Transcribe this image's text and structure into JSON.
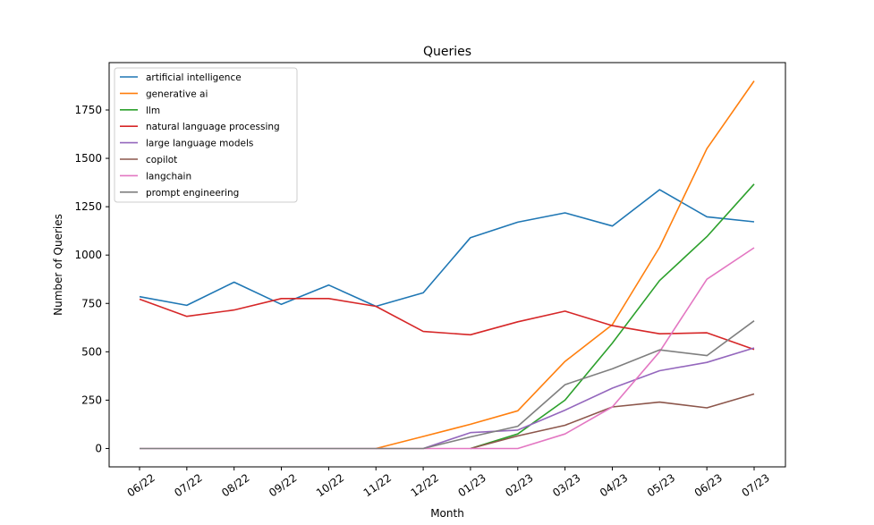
{
  "chart_data": {
    "type": "line",
    "title": "Queries",
    "xlabel": "Month",
    "ylabel": "Number of Queries",
    "categories": [
      "06/22",
      "07/22",
      "08/22",
      "09/22",
      "10/22",
      "11/22",
      "12/22",
      "01/23",
      "02/23",
      "03/23",
      "04/23",
      "05/23",
      "06/23",
      "07/23"
    ],
    "yticks": [
      0,
      250,
      500,
      750,
      1000,
      1250,
      1500,
      1750
    ],
    "ylim": [
      -95,
      1995
    ],
    "grid": false,
    "legend_position": "upper-left",
    "series": [
      {
        "name": "artificial intelligence",
        "color": "#1f77b4",
        "values": [
          785,
          740,
          860,
          745,
          845,
          735,
          805,
          1090,
          1170,
          1218,
          1150,
          1338,
          1198,
          1172
        ]
      },
      {
        "name": "generative ai",
        "color": "#ff7f0e",
        "values": [
          null,
          null,
          null,
          null,
          null,
          0,
          62,
          125,
          195,
          450,
          640,
          1040,
          1550,
          1900
        ]
      },
      {
        "name": "llm",
        "color": "#2ca02c",
        "values": [
          null,
          null,
          null,
          null,
          null,
          null,
          null,
          0,
          75,
          250,
          545,
          868,
          1095,
          1367
        ]
      },
      {
        "name": "natural language processing",
        "color": "#d62728",
        "values": [
          772,
          683,
          716,
          775,
          775,
          735,
          605,
          588,
          655,
          710,
          635,
          593,
          598,
          512
        ]
      },
      {
        "name": "large language models",
        "color": "#9467bd",
        "values": [
          null,
          null,
          null,
          null,
          null,
          null,
          0,
          82,
          95,
          198,
          312,
          402,
          445,
          520
        ]
      },
      {
        "name": "copilot",
        "color": "#8c564b",
        "values": [
          null,
          null,
          null,
          null,
          null,
          null,
          null,
          0,
          65,
          120,
          215,
          240,
          210,
          282
        ]
      },
      {
        "name": "langchain",
        "color": "#e377c2",
        "values": [
          0,
          0,
          0,
          0,
          0,
          0,
          0,
          0,
          0,
          75,
          215,
          500,
          875,
          1038
        ]
      },
      {
        "name": "prompt engineering",
        "color": "#7f7f7f",
        "values": [
          0,
          0,
          0,
          0,
          0,
          0,
          0,
          60,
          115,
          330,
          412,
          510,
          480,
          660
        ]
      }
    ]
  }
}
